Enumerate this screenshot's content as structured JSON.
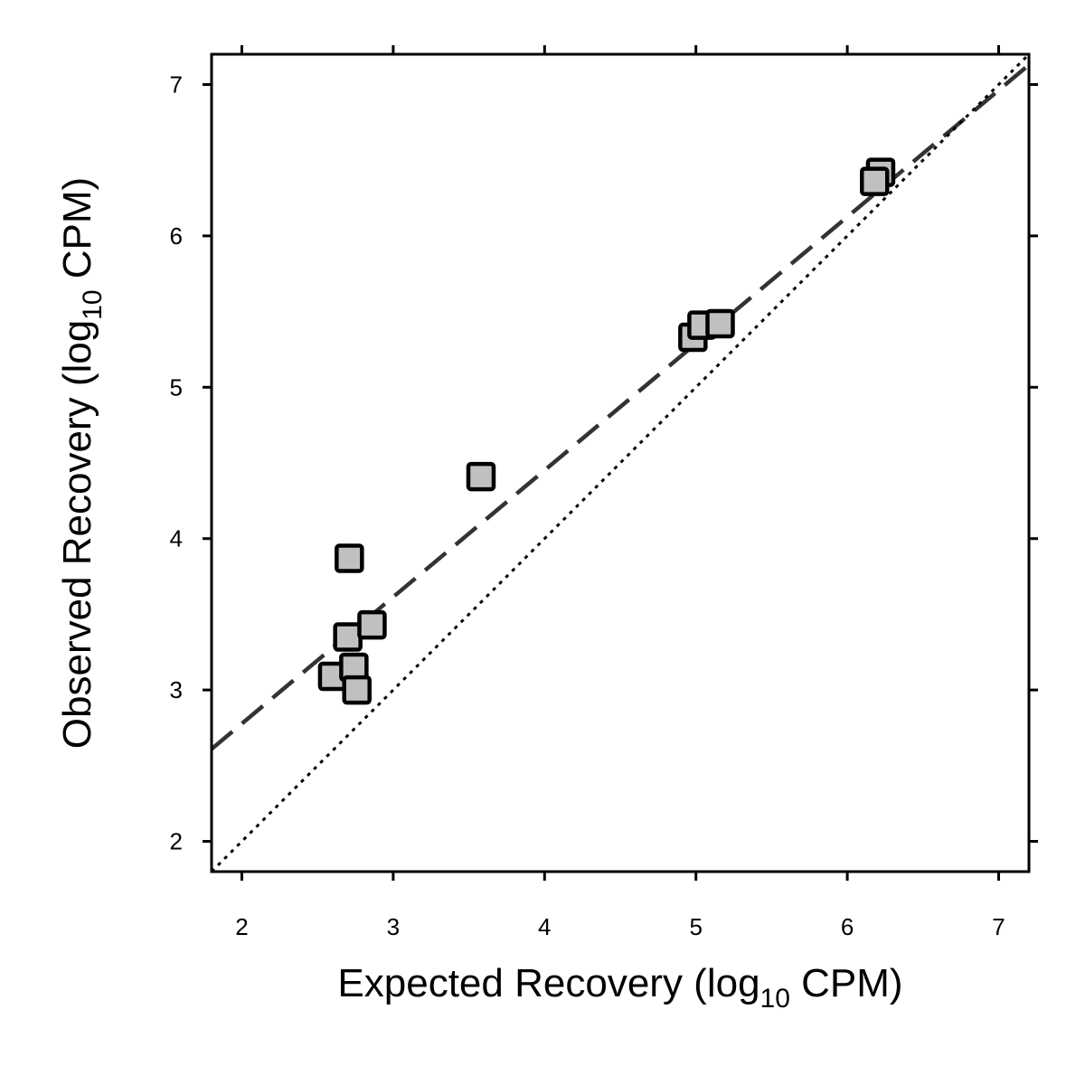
{
  "chart_data": {
    "type": "scatter",
    "xlabel": {
      "pre": "Expected Recovery (log",
      "sub": "10",
      "post": " CPM)"
    },
    "ylabel": {
      "pre": "Observed Recovery (log",
      "sub": "10",
      "post": " CPM)"
    },
    "xlim": [
      1.8,
      7.2
    ],
    "ylim": [
      1.8,
      7.2
    ],
    "xticks": [
      2,
      3,
      4,
      5,
      6,
      7
    ],
    "yticks": [
      2,
      3,
      4,
      5,
      6,
      7
    ],
    "grid": false,
    "series": [
      {
        "marker": "square",
        "fill": "#c0c0c0",
        "stroke": "#000000",
        "points": [
          {
            "x": 2.6,
            "y": 3.09
          },
          {
            "x": 2.74,
            "y": 3.15
          },
          {
            "x": 2.76,
            "y": 3.0
          },
          {
            "x": 2.7,
            "y": 3.35
          },
          {
            "x": 2.86,
            "y": 3.43
          },
          {
            "x": 2.71,
            "y": 3.87
          },
          {
            "x": 3.58,
            "y": 4.41
          },
          {
            "x": 4.98,
            "y": 5.33
          },
          {
            "x": 5.04,
            "y": 5.41
          },
          {
            "x": 5.16,
            "y": 5.42
          },
          {
            "x": 6.22,
            "y": 6.42
          },
          {
            "x": 6.18,
            "y": 6.36
          }
        ]
      }
    ],
    "lines": [
      {
        "kind": "fit",
        "style": "dashed",
        "color": "#333333",
        "x0": 1.8,
        "y0": 2.61,
        "x1": 7.2,
        "y1": 7.13
      },
      {
        "kind": "identity",
        "style": "dotted",
        "color": "#000000",
        "x0": 1.8,
        "y0": 1.8,
        "x1": 7.2,
        "y1": 7.2
      }
    ]
  }
}
